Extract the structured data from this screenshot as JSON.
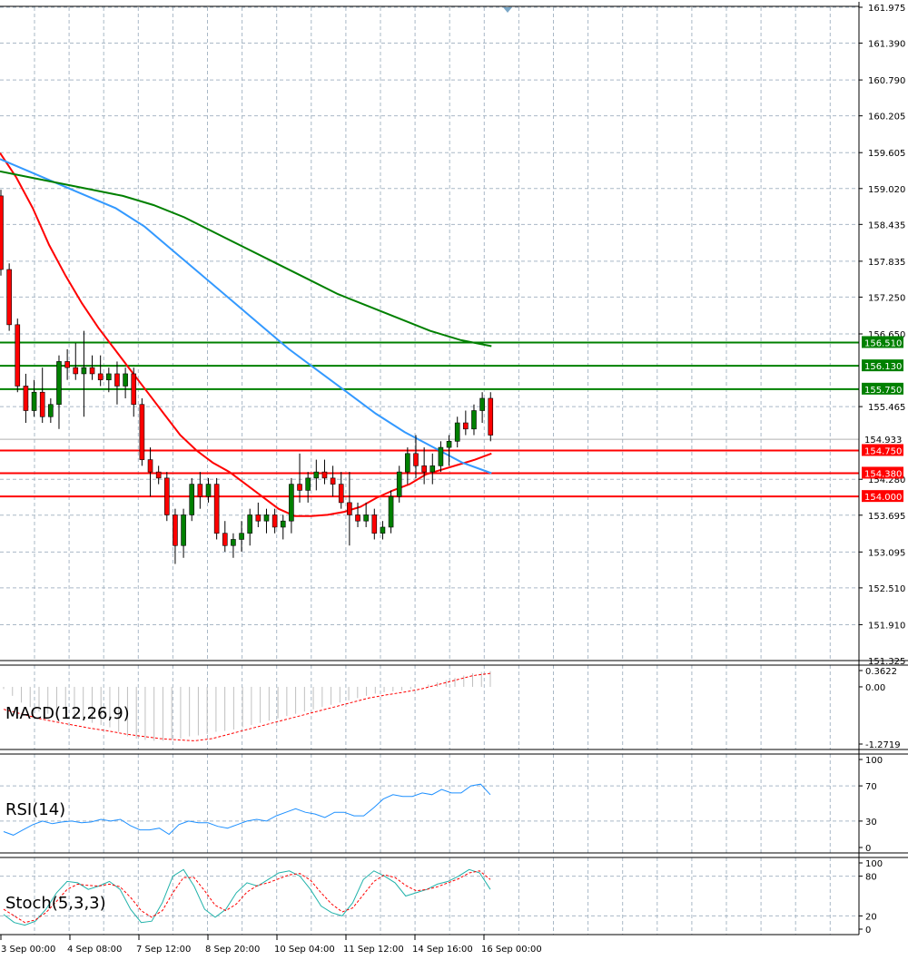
{
  "chart_data": [
    {
      "type": "candlestick",
      "pane": "price",
      "ylim": [
        151.325,
        161.975
      ],
      "grid": true,
      "y_ticks": [
        "161.975",
        "161.390",
        "160.790",
        "160.205",
        "159.605",
        "159.020",
        "158.435",
        "157.835",
        "157.250",
        "156.650",
        "155.465",
        "154.280",
        "153.695",
        "153.095",
        "152.510",
        "151.910",
        "151.325"
      ],
      "current_price": "154.933",
      "candles": [
        {
          "o": 158.9,
          "h": 159.0,
          "l": 157.6,
          "c": 157.7
        },
        {
          "o": 157.7,
          "h": 157.8,
          "l": 156.7,
          "c": 156.8
        },
        {
          "o": 156.8,
          "h": 156.9,
          "l": 155.7,
          "c": 155.8
        },
        {
          "o": 155.8,
          "h": 156.0,
          "l": 155.2,
          "c": 155.4
        },
        {
          "o": 155.4,
          "h": 155.9,
          "l": 155.3,
          "c": 155.7
        },
        {
          "o": 155.7,
          "h": 156.1,
          "l": 155.2,
          "c": 155.3
        },
        {
          "o": 155.3,
          "h": 155.6,
          "l": 155.2,
          "c": 155.5
        },
        {
          "o": 155.5,
          "h": 156.3,
          "l": 155.1,
          "c": 156.2
        },
        {
          "o": 156.2,
          "h": 156.4,
          "l": 155.9,
          "c": 156.1
        },
        {
          "o": 156.1,
          "h": 156.5,
          "l": 155.9,
          "c": 156.0
        },
        {
          "o": 156.0,
          "h": 156.7,
          "l": 155.3,
          "c": 156.1
        },
        {
          "o": 156.1,
          "h": 156.3,
          "l": 155.9,
          "c": 156.0
        },
        {
          "o": 156.0,
          "h": 156.3,
          "l": 155.8,
          "c": 155.9
        },
        {
          "o": 155.9,
          "h": 156.1,
          "l": 155.7,
          "c": 156.0
        },
        {
          "o": 156.0,
          "h": 156.2,
          "l": 155.5,
          "c": 155.8
        },
        {
          "o": 155.8,
          "h": 156.1,
          "l": 155.6,
          "c": 156.0
        },
        {
          "o": 156.0,
          "h": 156.1,
          "l": 155.3,
          "c": 155.5
        },
        {
          "o": 155.5,
          "h": 155.6,
          "l": 154.5,
          "c": 154.6
        },
        {
          "o": 154.6,
          "h": 154.8,
          "l": 154.0,
          "c": 154.4
        },
        {
          "o": 154.4,
          "h": 154.5,
          "l": 154.2,
          "c": 154.3
        },
        {
          "o": 154.3,
          "h": 154.4,
          "l": 153.6,
          "c": 153.7
        },
        {
          "o": 153.7,
          "h": 153.8,
          "l": 152.9,
          "c": 153.2
        },
        {
          "o": 153.2,
          "h": 153.8,
          "l": 153.0,
          "c": 153.7
        },
        {
          "o": 153.7,
          "h": 154.3,
          "l": 153.6,
          "c": 154.2
        },
        {
          "o": 154.2,
          "h": 154.4,
          "l": 153.8,
          "c": 154.0
        },
        {
          "o": 154.0,
          "h": 154.3,
          "l": 153.9,
          "c": 154.2
        },
        {
          "o": 154.2,
          "h": 154.3,
          "l": 153.3,
          "c": 153.4
        },
        {
          "o": 153.4,
          "h": 153.6,
          "l": 153.1,
          "c": 153.2
        },
        {
          "o": 153.2,
          "h": 153.4,
          "l": 153.0,
          "c": 153.3
        },
        {
          "o": 153.3,
          "h": 153.6,
          "l": 153.1,
          "c": 153.4
        },
        {
          "o": 153.4,
          "h": 153.8,
          "l": 153.2,
          "c": 153.7
        },
        {
          "o": 153.7,
          "h": 153.9,
          "l": 153.5,
          "c": 153.6
        },
        {
          "o": 153.6,
          "h": 153.8,
          "l": 153.4,
          "c": 153.7
        },
        {
          "o": 153.7,
          "h": 153.8,
          "l": 153.4,
          "c": 153.5
        },
        {
          "o": 153.5,
          "h": 153.7,
          "l": 153.3,
          "c": 153.6
        },
        {
          "o": 153.6,
          "h": 154.3,
          "l": 153.4,
          "c": 154.2
        },
        {
          "o": 154.2,
          "h": 154.7,
          "l": 153.9,
          "c": 154.1
        },
        {
          "o": 154.1,
          "h": 154.4,
          "l": 153.9,
          "c": 154.3
        },
        {
          "o": 154.3,
          "h": 154.6,
          "l": 154.1,
          "c": 154.4
        },
        {
          "o": 154.4,
          "h": 154.6,
          "l": 154.2,
          "c": 154.3
        },
        {
          "o": 154.3,
          "h": 154.5,
          "l": 154.0,
          "c": 154.2
        },
        {
          "o": 154.2,
          "h": 154.4,
          "l": 153.8,
          "c": 153.9
        },
        {
          "o": 153.9,
          "h": 154.4,
          "l": 153.2,
          "c": 153.7
        },
        {
          "o": 153.7,
          "h": 153.9,
          "l": 153.5,
          "c": 153.6
        },
        {
          "o": 153.6,
          "h": 153.9,
          "l": 153.5,
          "c": 153.7
        },
        {
          "o": 153.7,
          "h": 153.8,
          "l": 153.3,
          "c": 153.4
        },
        {
          "o": 153.4,
          "h": 153.6,
          "l": 153.3,
          "c": 153.5
        },
        {
          "o": 153.5,
          "h": 154.1,
          "l": 153.4,
          "c": 154.0
        },
        {
          "o": 154.0,
          "h": 154.5,
          "l": 153.9,
          "c": 154.4
        },
        {
          "o": 154.4,
          "h": 154.8,
          "l": 154.2,
          "c": 154.7
        },
        {
          "o": 154.7,
          "h": 155.0,
          "l": 154.3,
          "c": 154.5
        },
        {
          "o": 154.5,
          "h": 154.8,
          "l": 154.2,
          "c": 154.4
        },
        {
          "o": 154.4,
          "h": 154.7,
          "l": 154.2,
          "c": 154.5
        },
        {
          "o": 154.5,
          "h": 154.9,
          "l": 154.4,
          "c": 154.8
        },
        {
          "o": 154.8,
          "h": 155.0,
          "l": 154.5,
          "c": 154.9
        },
        {
          "o": 154.9,
          "h": 155.3,
          "l": 154.8,
          "c": 155.2
        },
        {
          "o": 155.2,
          "h": 155.4,
          "l": 155.0,
          "c": 155.1
        },
        {
          "o": 155.1,
          "h": 155.5,
          "l": 155.0,
          "c": 155.4
        },
        {
          "o": 155.4,
          "h": 155.7,
          "l": 155.2,
          "c": 155.6
        },
        {
          "o": 155.6,
          "h": 155.7,
          "l": 154.9,
          "c": 155.0
        }
      ],
      "moving_averages": [
        {
          "color": "#ff0000",
          "values": [
            159.6,
            159.2,
            158.7,
            158.1,
            157.6,
            157.15,
            156.75,
            156.4,
            156.05,
            155.7,
            155.35,
            155.0,
            154.75,
            154.55,
            154.4,
            154.2,
            154.0,
            153.8,
            153.68,
            153.68,
            153.7,
            153.75,
            153.83,
            153.98,
            154.1,
            154.2,
            154.36,
            154.44,
            154.52,
            154.6,
            154.7
          ]
        },
        {
          "color": "#3399ff",
          "values": [
            159.5,
            159.3,
            159.1,
            158.9,
            158.7,
            158.4,
            158.0,
            157.6,
            157.2,
            156.8,
            156.4,
            156.05,
            155.7,
            155.35,
            155.05,
            154.8,
            154.55,
            154.38
          ]
        },
        {
          "color": "#008000",
          "values": [
            159.3,
            159.2,
            159.1,
            159.0,
            158.9,
            158.75,
            158.55,
            158.3,
            158.05,
            157.8,
            157.55,
            157.3,
            157.1,
            156.9,
            156.7,
            156.55,
            156.45
          ]
        }
      ],
      "levels": [
        {
          "value": "156.510",
          "kind": "resistance",
          "color": "#008000"
        },
        {
          "value": "156.130",
          "kind": "resistance",
          "color": "#008000"
        },
        {
          "value": "155.750",
          "kind": "resistance",
          "color": "#008000"
        },
        {
          "value": "154.750",
          "kind": "support",
          "color": "#ff0000"
        },
        {
          "value": "154.380",
          "kind": "support",
          "color": "#ff0000"
        },
        {
          "value": "154.000",
          "kind": "support",
          "color": "#ff0000"
        }
      ],
      "x_tick_labels": [
        "3 Sep 00:00",
        "4 Sep 08:00",
        "7 Sep 12:00",
        "8 Sep 20:00",
        "10 Sep 04:00",
        "11 Sep 12:00",
        "14 Sep 16:00",
        "16 Sep 00:00"
      ]
    },
    {
      "type": "histogram",
      "pane": "macd",
      "label": "MACD(12,26,9)",
      "ylim": [
        -1.2719,
        0.3622
      ],
      "y_ticks": [
        "0.3622",
        "0.00",
        "-1.2719"
      ],
      "histogram": [
        -0.05,
        -0.2,
        -0.35,
        -0.45,
        -0.55,
        -0.6,
        -0.65,
        -0.7,
        -0.72,
        -0.75,
        -0.8,
        -0.85,
        -0.9,
        -1.0,
        -1.1,
        -1.15,
        -1.18,
        -1.2,
        -1.2,
        -1.18,
        -1.15,
        -1.1,
        -1.08,
        -1.05,
        -1.0,
        -0.98,
        -0.95,
        -0.9,
        -0.85,
        -0.8,
        -0.75,
        -0.7,
        -0.65,
        -0.6,
        -0.55,
        -0.5,
        -0.45,
        -0.4,
        -0.35,
        -0.3,
        -0.25,
        -0.2,
        -0.15,
        -0.12,
        -0.1,
        -0.08,
        -0.05,
        0.0,
        0.05,
        0.1,
        0.15,
        0.2,
        0.25,
        0.3,
        0.33,
        0.35
      ],
      "signal": [
        -0.5,
        -0.6,
        -0.7,
        -0.78,
        -0.85,
        -0.92,
        -0.98,
        -1.05,
        -1.1,
        -1.15,
        -1.18,
        -1.2,
        -1.15,
        -1.05,
        -0.95,
        -0.85,
        -0.75,
        -0.65,
        -0.55,
        -0.45,
        -0.35,
        -0.25,
        -0.18,
        -0.12,
        -0.05,
        0.05,
        0.15,
        0.25,
        0.3
      ]
    },
    {
      "type": "line",
      "pane": "rsi",
      "label": "RSI(14)",
      "ylim": [
        0,
        100
      ],
      "y_ticks": [
        "100",
        "70",
        "30",
        "0"
      ],
      "values": [
        18,
        14,
        20,
        26,
        30,
        27,
        29,
        30,
        28,
        29,
        32,
        30,
        32,
        25,
        20,
        20,
        22,
        15,
        26,
        30,
        28,
        28,
        24,
        22,
        26,
        30,
        32,
        30,
        36,
        40,
        44,
        40,
        38,
        34,
        40,
        40,
        36,
        36,
        45,
        55,
        60,
        58,
        58,
        62,
        60,
        66,
        62,
        62,
        70,
        72,
        60
      ]
    },
    {
      "type": "line",
      "pane": "stoch",
      "label": "Stoch(5,3,3)",
      "ylim": [
        0,
        100
      ],
      "y_ticks": [
        "100",
        "80",
        "20",
        "0"
      ],
      "main": [
        22,
        10,
        6,
        12,
        30,
        55,
        72,
        70,
        60,
        65,
        72,
        60,
        30,
        10,
        12,
        40,
        80,
        90,
        65,
        30,
        18,
        30,
        55,
        70,
        65,
        75,
        85,
        88,
        80,
        60,
        35,
        25,
        20,
        40,
        75,
        88,
        80,
        70,
        50,
        55,
        60,
        68,
        72,
        80,
        90,
        85,
        60
      ],
      "signal": [
        30,
        20,
        10,
        14,
        25,
        42,
        60,
        68,
        66,
        65,
        68,
        64,
        48,
        28,
        18,
        28,
        55,
        78,
        78,
        58,
        36,
        28,
        38,
        56,
        66,
        70,
        76,
        82,
        84,
        74,
        55,
        38,
        26,
        32,
        52,
        72,
        82,
        78,
        66,
        58,
        60,
        64,
        70,
        76,
        85,
        88,
        75
      ]
    }
  ]
}
